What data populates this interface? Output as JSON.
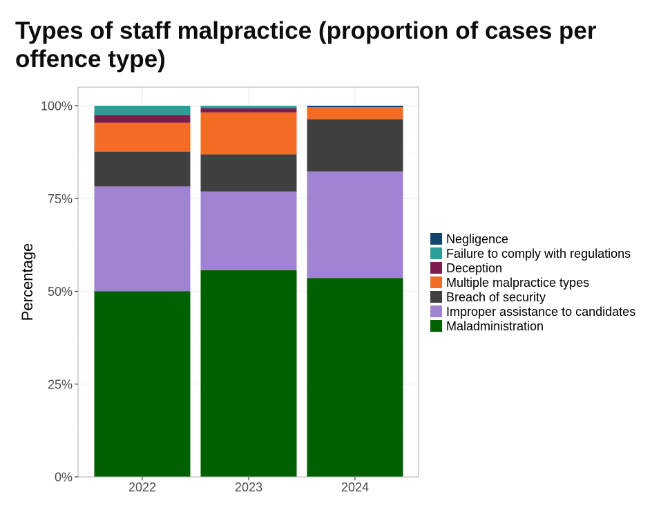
{
  "chart_data": {
    "type": "bar",
    "stacked": true,
    "title": "Types of staff malpractice (proportion of cases per offence type)",
    "xlabel": "",
    "ylabel": "Percentage",
    "ylim": [
      0,
      100
    ],
    "yticks": [
      "0%",
      "25%",
      "50%",
      "75%",
      "100%"
    ],
    "categories": [
      "2022",
      "2023",
      "2024"
    ],
    "grid": true,
    "legend_position": "right",
    "series": [
      {
        "name": "Maladministration",
        "color": "#006100",
        "values": [
          50.0,
          55.7,
          53.6
        ]
      },
      {
        "name": "Improper assistance to candidates",
        "color": "#a184d1",
        "values": [
          28.3,
          21.2,
          28.7
        ]
      },
      {
        "name": "Breach of security",
        "color": "#404040",
        "values": [
          9.3,
          10.0,
          14.1
        ]
      },
      {
        "name": "Multiple malpractice types",
        "color": "#f36b25",
        "values": [
          7.8,
          11.3,
          3.2
        ]
      },
      {
        "name": "Deception",
        "color": "#7b1e4e",
        "values": [
          2.1,
          1.2,
          0.0
        ]
      },
      {
        "name": "Failure to comply with regulations",
        "color": "#2aa198",
        "values": [
          2.5,
          0.6,
          0.0
        ]
      },
      {
        "name": "Negligence",
        "color": "#12436d",
        "values": [
          0.0,
          0.0,
          0.4
        ]
      }
    ],
    "legend_order": [
      "Negligence",
      "Failure to comply with regulations",
      "Deception",
      "Multiple malpractice types",
      "Breach of security",
      "Improper assistance to candidates",
      "Maladministration"
    ]
  }
}
